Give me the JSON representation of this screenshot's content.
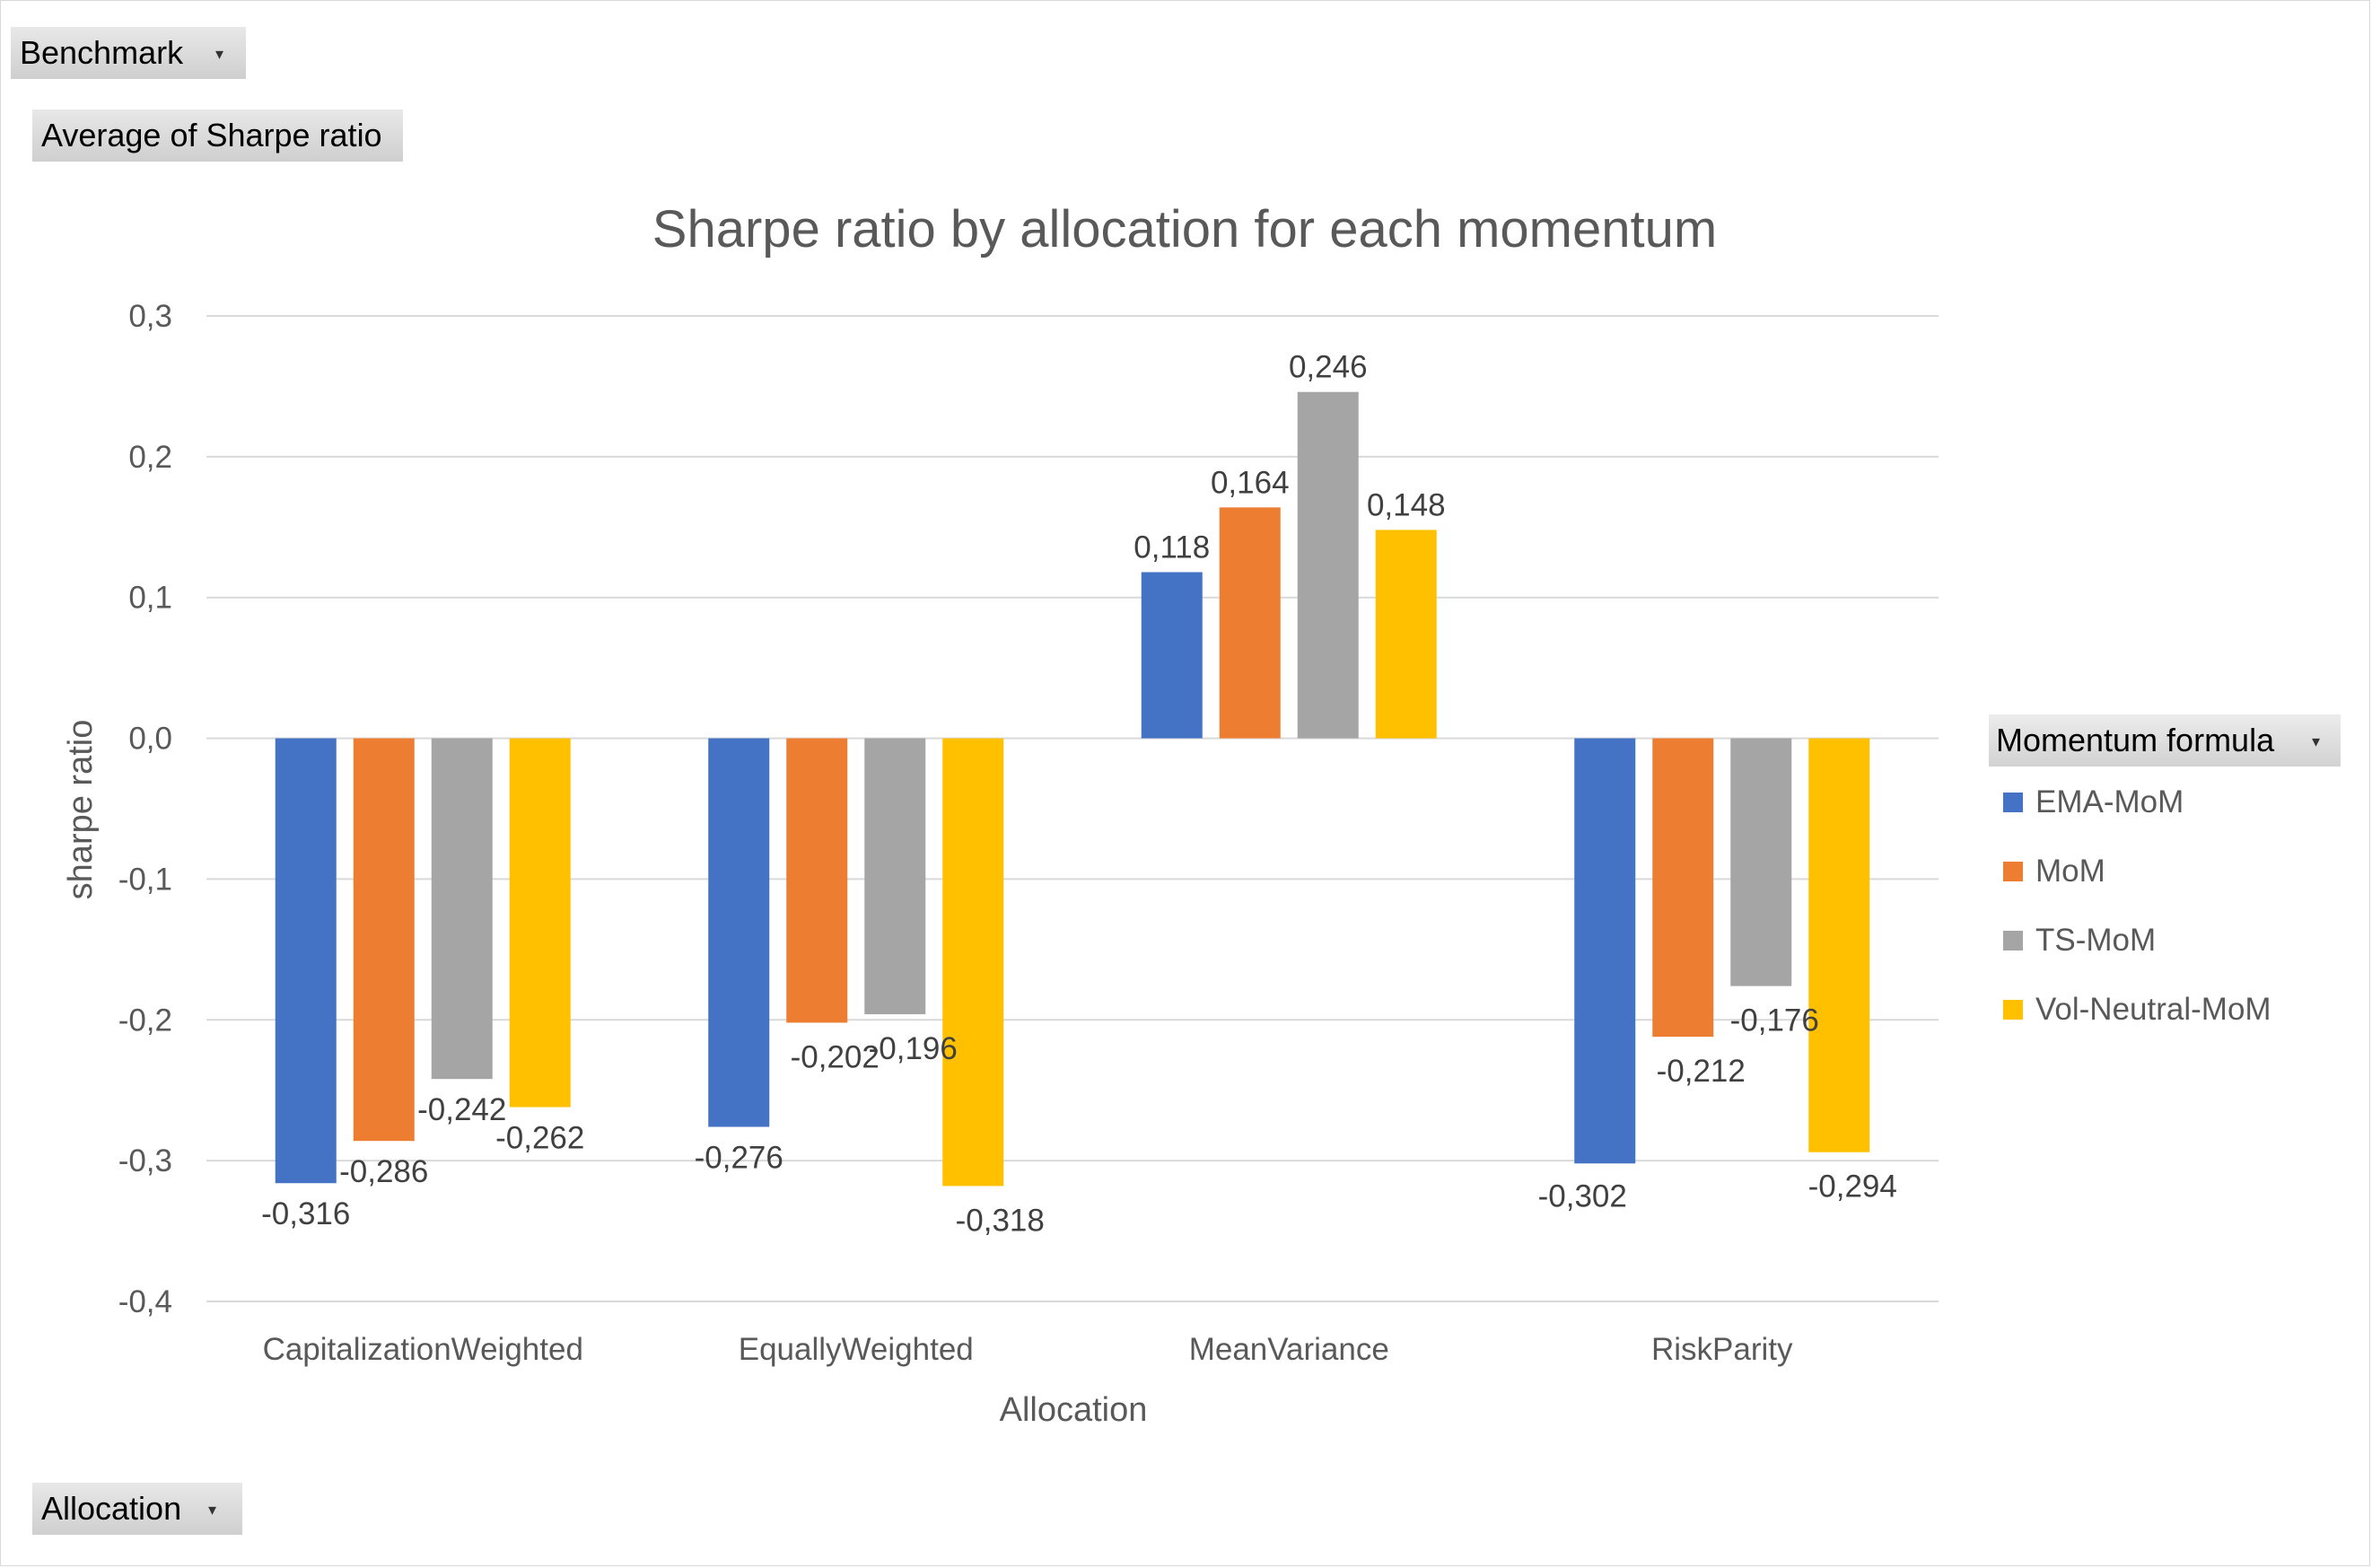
{
  "field_buttons": {
    "filter": "Benchmark",
    "values": "Average of Sharpe ratio",
    "axis": "Allocation"
  },
  "legend": {
    "title": "Momentum formula"
  },
  "colors": {
    "EMA-MoM": "#4472C4",
    "MoM": "#ED7D31",
    "TS-MoM": "#A5A5A5",
    "Vol-Neutral-MoM": "#FFC000",
    "grid": "#d9d9d9",
    "text": "#595959"
  },
  "chart_data": {
    "type": "bar",
    "title": "Sharpe ratio by allocation for each momentum",
    "xlabel": "Allocation",
    "ylabel": "sharpe ratio",
    "ylim": [
      -0.4,
      0.3
    ],
    "yticks": [
      "-0,4",
      "-0,3",
      "-0,2",
      "-0,1",
      "0,0",
      "0,1",
      "0,2",
      "0,3"
    ],
    "grid": true,
    "legend_position": "right",
    "categories": [
      "CapitalizationWeighted",
      "EquallyWeighted",
      "MeanVariance",
      "RiskParity"
    ],
    "series": [
      {
        "name": "EMA-MoM",
        "values": [
          -0.316,
          -0.276,
          0.118,
          -0.302
        ],
        "labels": [
          "-0,316",
          "-0,276",
          "0,118",
          "-0,302"
        ]
      },
      {
        "name": "MoM",
        "values": [
          -0.286,
          -0.202,
          0.164,
          -0.212
        ],
        "labels": [
          "-0,286",
          "-0,202",
          "0,164",
          "-0,212"
        ]
      },
      {
        "name": "TS-MoM",
        "values": [
          -0.242,
          -0.196,
          0.246,
          -0.176
        ],
        "labels": [
          "-0,242",
          "-0,196",
          "0,246",
          "-0,176"
        ]
      },
      {
        "name": "Vol-Neutral-MoM",
        "values": [
          -0.262,
          -0.318,
          0.148,
          -0.294
        ],
        "labels": [
          "-0,262",
          "-0,318",
          "0,148",
          "-0,294"
        ]
      }
    ]
  }
}
